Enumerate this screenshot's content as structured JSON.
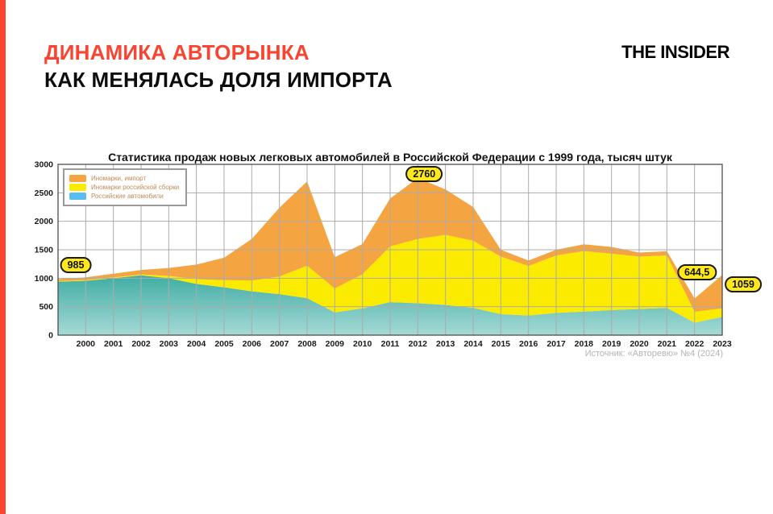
{
  "page": {
    "accent_color": "#fa4432",
    "title_line1": "ДИНАМИКА АВТОРЫНКА",
    "title_line2": "КАК МЕНЯЛАСЬ ДОЛЯ ИМПОРТА",
    "logo": "THE INSIDER"
  },
  "chart_data": {
    "type": "area",
    "stacked": true,
    "title": "Статистика продаж новых легковых автомобилей в Российской Федерации с 1999 года, тысяч штук",
    "grid": true,
    "legend_position": "top-left",
    "ylim": [
      0,
      3000
    ],
    "ytick_step": 500,
    "years": [
      1999,
      2000,
      2001,
      2002,
      2003,
      2004,
      2005,
      2006,
      2007,
      2008,
      2009,
      2010,
      2011,
      2012,
      2013,
      2014,
      2015,
      2016,
      2017,
      2018,
      2019,
      2020,
      2021,
      2022,
      2023
    ],
    "series": [
      {
        "name": "Иномарки, импорт",
        "color": "#f5a442",
        "values": [
          35,
          50,
          65,
          80,
          140,
          255,
          395,
          730,
          1210,
          1480,
          550,
          530,
          840,
          1070,
          800,
          590,
          120,
          95,
          100,
          120,
          120,
          70,
          75,
          234.5,
          589
        ]
      },
      {
        "name": "Иномарки российской сборки",
        "color": "#fbeb00",
        "values": [
          10,
          10,
          15,
          15,
          40,
          85,
          125,
          190,
          310,
          570,
          420,
          600,
          980,
          1130,
          1230,
          1180,
          1010,
          870,
          1010,
          1060,
          990,
          920,
          920,
          190,
          150
        ]
      },
      {
        "name": "Российские автомобили",
        "color": "#59beef",
        "area_gradient": [
          "#3fada4",
          "#a6dad6"
        ],
        "values": [
          940,
          955,
          1000,
          1050,
          1000,
          900,
          840,
          770,
          720,
          650,
          400,
          470,
          580,
          560,
          530,
          480,
          370,
          345,
          390,
          415,
          440,
          460,
          480,
          220,
          320
        ]
      }
    ],
    "annotations": [
      {
        "label": "985",
        "year": 1999,
        "value": 985
      },
      {
        "label": "2760",
        "year": 2012,
        "value": 2760
      },
      {
        "label": "644,5",
        "year": 2022,
        "value": 644.5
      },
      {
        "label": "1059",
        "year": 2023,
        "value": 1059
      }
    ],
    "badge_bg": "#ffe81c",
    "badge_border": "#1b1b1b",
    "source": "Источник: «Авторевю» №4 (2024)"
  }
}
